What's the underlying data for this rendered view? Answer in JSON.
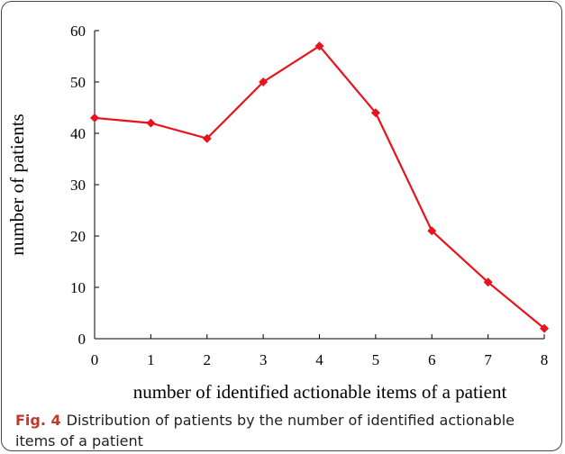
{
  "chart_data": {
    "type": "line",
    "x": [
      0,
      1,
      2,
      3,
      4,
      5,
      6,
      7,
      8
    ],
    "values": [
      43,
      42,
      39,
      50,
      57,
      44,
      21,
      11,
      2
    ],
    "color": "#e8141b",
    "xlim": [
      0,
      8
    ],
    "xticks": [
      0,
      1,
      2,
      3,
      4,
      5,
      6,
      7,
      8
    ],
    "ylim": [
      0,
      60
    ],
    "yticks": [
      0,
      10,
      20,
      30,
      40,
      50,
      60
    ],
    "xlabel": "number of identified actionable items of a patient",
    "ylabel": "number of patients",
    "caption_label": "Fig. 4",
    "caption": "Distribution of patients by the number of identified actionable items of a patient"
  }
}
